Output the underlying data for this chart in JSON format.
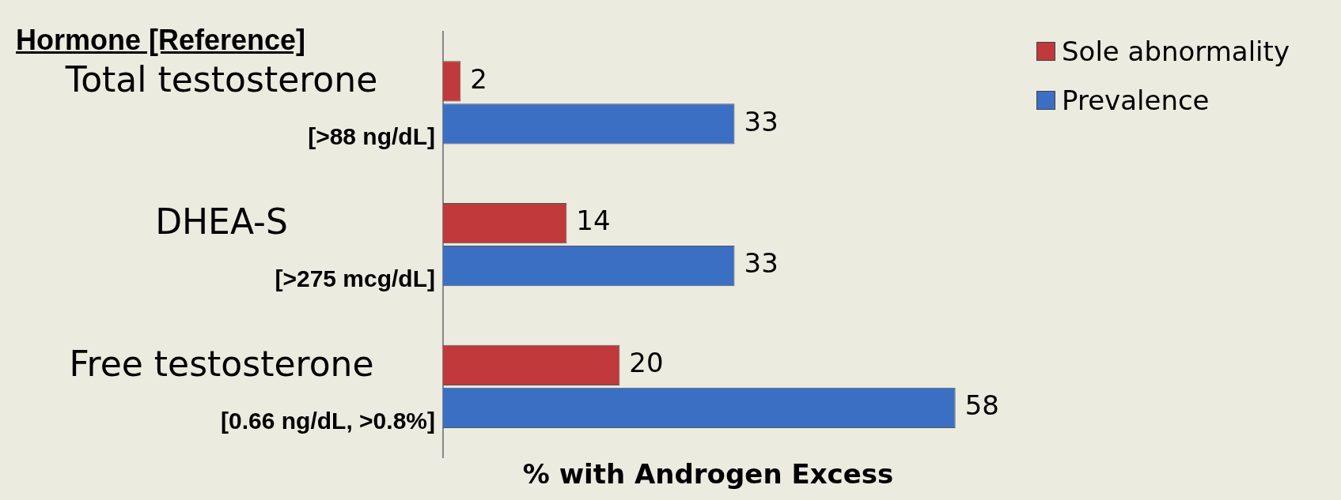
{
  "chart_data": {
    "type": "bar",
    "orientation": "horizontal",
    "ylabel": "Hormone [Reference]",
    "xlabel": "% with Androgen Excess",
    "categories": [
      "Total testosterone\n[>88 ng/dL]",
      "DHEA-S\n[>275 mcg/dL]",
      "Free testosterone\n[0.66 ng/dL, >0.8%]"
    ],
    "series": [
      {
        "name": "Sole abnormality",
        "color": "#c0393b",
        "values": [
          2,
          14,
          20
        ]
      },
      {
        "name": "Prevalence",
        "color": "#3a6fc4",
        "values": [
          33,
          33,
          58
        ]
      }
    ],
    "data_labels": true,
    "legend": "top right",
    "grid": false
  }
}
